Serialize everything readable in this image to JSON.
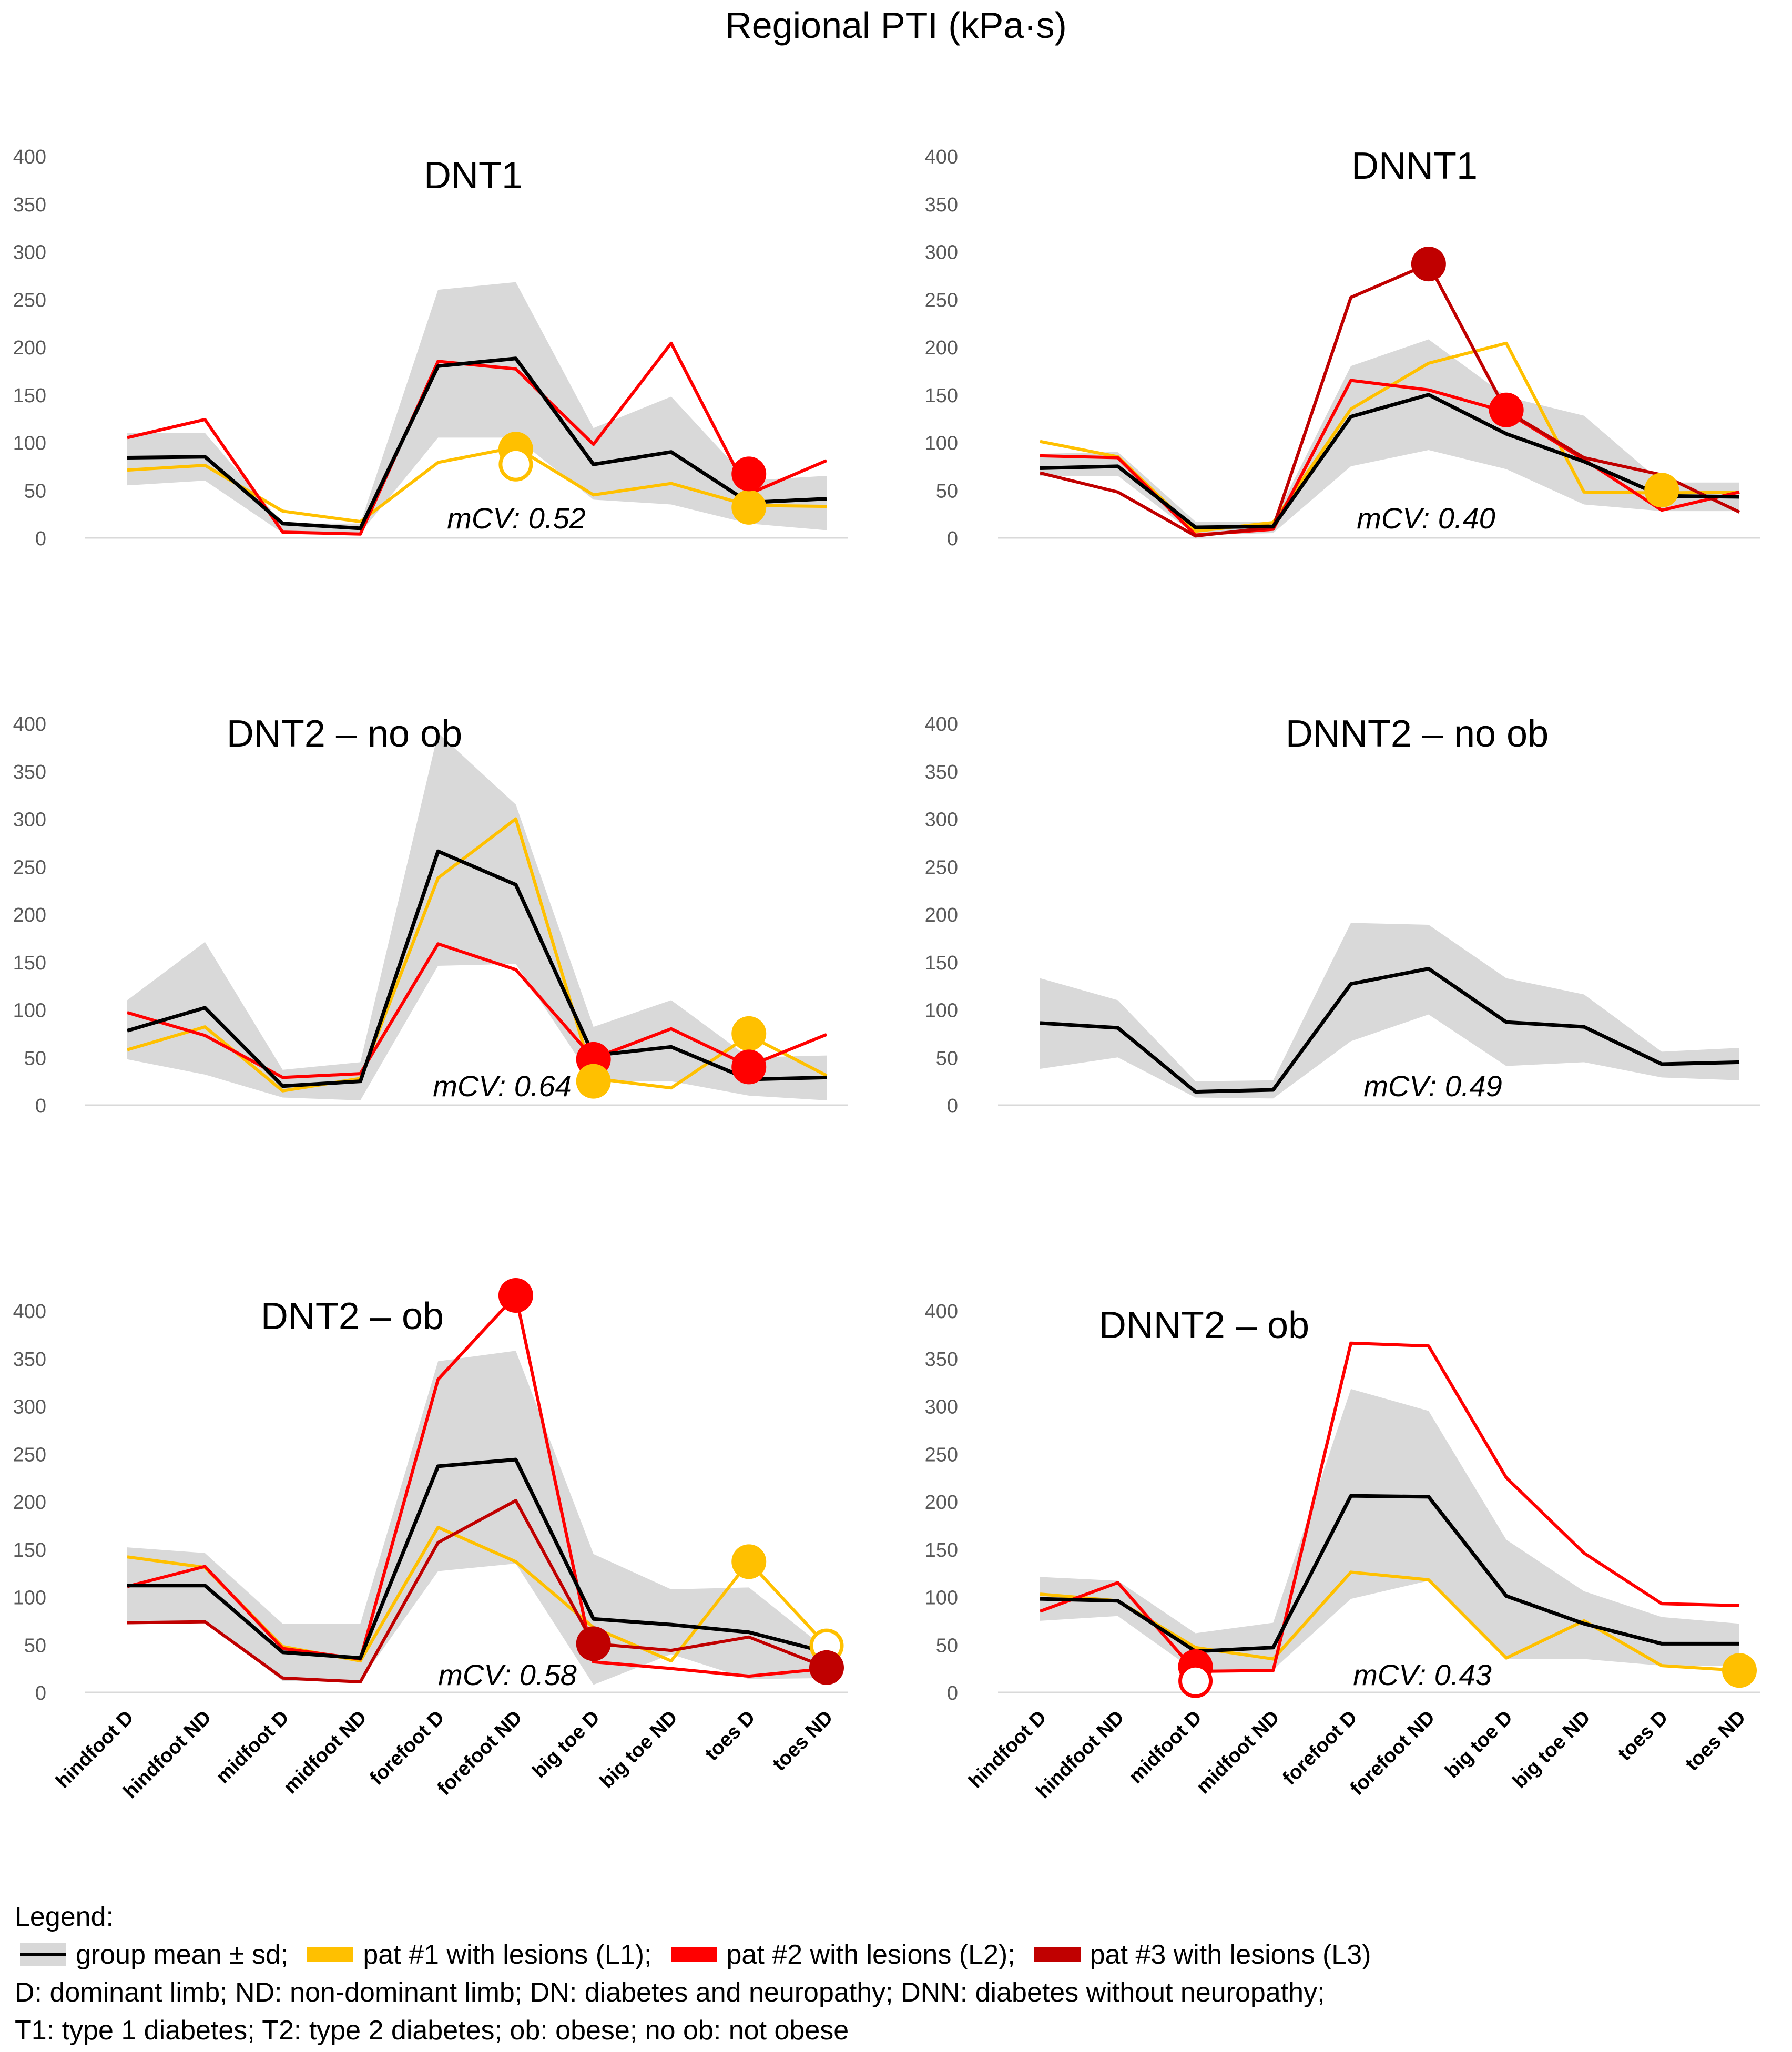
{
  "figure": {
    "title": "Regional PTI (kPa·s)",
    "categories": [
      "hindfoot D",
      "hindfoot ND",
      "midfoot D",
      "midfoot ND",
      "forefoot D",
      "forefoot ND",
      "big toe D",
      "big toe ND",
      "toes D",
      "toes ND"
    ],
    "colors": {
      "mean": "#000000",
      "band": "#d9d9d9",
      "L1": "#ffc000",
      "L2": "#ff0000",
      "L3": "#c00000"
    }
  },
  "chart_data": [
    {
      "type": "line",
      "title": "DNT1",
      "mcv": "mCV: 0.52",
      "ylim": [
        0,
        400
      ],
      "yticks": [
        "0",
        "50",
        "100",
        "150",
        "200",
        "250",
        "300",
        "350",
        "400"
      ],
      "show_xlabels": false,
      "band": {
        "low": [
          55,
          60,
          5,
          5,
          105,
          105,
          40,
          35,
          15,
          8
        ],
        "high": [
          110,
          110,
          15,
          15,
          260,
          268,
          115,
          148,
          60,
          65
        ]
      },
      "series": [
        {
          "name": "group mean",
          "color": "#000000",
          "values": [
            84,
            85,
            15,
            10,
            180,
            188,
            77,
            90,
            37,
            41
          ]
        },
        {
          "name": "pat #1 with lesions (L1)",
          "color": "#ffc000",
          "values": [
            71,
            76,
            28,
            17,
            79,
            95,
            45,
            57,
            34,
            33
          ]
        },
        {
          "name": "pat #2 with lesions (L2)",
          "color": "#ff0000",
          "values": [
            105,
            124,
            6,
            4,
            185,
            177,
            98,
            204,
            46,
            81
          ]
        }
      ],
      "markers": [
        {
          "series": "L1",
          "index": 5,
          "value": 93,
          "filled": true
        },
        {
          "series": "L1",
          "index": 5,
          "value": 77,
          "filled": false
        },
        {
          "series": "L1",
          "index": 8,
          "value": 32,
          "filled": true
        },
        {
          "series": "L2",
          "index": 8,
          "value": 67,
          "filled": true
        }
      ]
    },
    {
      "type": "line",
      "title": "DNNT1",
      "mcv": "mCV: 0.40",
      "ylim": [
        0,
        400
      ],
      "yticks": [
        "0",
        "50",
        "100",
        "150",
        "200",
        "250",
        "300",
        "350",
        "400"
      ],
      "show_xlabels": false,
      "band": {
        "low": [
          65,
          65,
          3,
          5,
          75,
          92,
          72,
          35,
          28,
          28
        ],
        "high": [
          88,
          90,
          17,
          17,
          180,
          208,
          148,
          128,
          58,
          58
        ]
      },
      "series": [
        {
          "name": "group mean",
          "color": "#000000",
          "values": [
            73,
            75,
            11,
            12,
            127,
            150,
            109,
            80,
            44,
            43
          ]
        },
        {
          "name": "pat #1 with lesions (L1)",
          "color": "#ffc000",
          "values": [
            101,
            85,
            7,
            16,
            135,
            183,
            204,
            48,
            47,
            48
          ]
        },
        {
          "name": "pat #2 with lesions (L2)",
          "color": "#ff0000",
          "values": [
            86,
            84,
            3,
            9,
            165,
            155,
            132,
            82,
            29,
            48
          ]
        },
        {
          "name": "pat #3 with lesions (L3)",
          "color": "#c00000",
          "values": [
            68,
            48,
            2,
            11,
            252,
            287,
            133,
            84,
            66,
            27
          ]
        }
      ],
      "markers": [
        {
          "series": "L3",
          "index": 5,
          "value": 287,
          "filled": true
        },
        {
          "series": "L2",
          "index": 6,
          "value": 134,
          "filled": true
        },
        {
          "series": "L1",
          "index": 8,
          "value": 50,
          "filled": true
        }
      ]
    },
    {
      "type": "line",
      "title": "DNT2 – no ob",
      "mcv": "mCV: 0.64",
      "ylim": [
        0,
        400
      ],
      "yticks": [
        "0",
        "50",
        "100",
        "150",
        "200",
        "250",
        "300",
        "350",
        "400"
      ],
      "show_xlabels": false,
      "band": {
        "low": [
          48,
          32,
          8,
          5,
          146,
          148,
          25,
          25,
          10,
          5
        ],
        "high": [
          110,
          171,
          37,
          45,
          390,
          315,
          82,
          110,
          50,
          52
        ]
      },
      "series": [
        {
          "name": "group mean",
          "color": "#000000",
          "values": [
            78,
            102,
            20,
            25,
            266,
            231,
            52,
            61,
            27,
            29
          ]
        },
        {
          "name": "pat #1 with lesions (L1)",
          "color": "#ffc000",
          "values": [
            58,
            82,
            15,
            28,
            238,
            300,
            28,
            18,
            73,
            31
          ]
        },
        {
          "name": "pat #2 with lesions (L2)",
          "color": "#ff0000",
          "values": [
            97,
            73,
            29,
            33,
            169,
            142,
            49,
            80,
            41,
            74
          ]
        }
      ],
      "markers": [
        {
          "series": "L2",
          "index": 6,
          "value": 48,
          "filled": true
        },
        {
          "series": "L1",
          "index": 6,
          "value": 25,
          "filled": true
        },
        {
          "series": "L1",
          "index": 8,
          "value": 75,
          "filled": true
        },
        {
          "series": "L2",
          "index": 8,
          "value": 40,
          "filled": true
        }
      ]
    },
    {
      "type": "line",
      "title": "DNNT2 – no ob",
      "mcv": "mCV: 0.49",
      "ylim": [
        0,
        400
      ],
      "yticks": [
        "0",
        "50",
        "100",
        "150",
        "200",
        "250",
        "300",
        "350",
        "400"
      ],
      "show_xlabels": false,
      "band": {
        "low": [
          38,
          50,
          8,
          7,
          67,
          95,
          41,
          45,
          29,
          26
        ],
        "high": [
          133,
          110,
          25,
          26,
          191,
          189,
          133,
          116,
          56,
          60
        ]
      },
      "series": [
        {
          "name": "group mean",
          "color": "#000000",
          "values": [
            86,
            81,
            14,
            16,
            127,
            143,
            87,
            82,
            43,
            45
          ]
        }
      ],
      "markers": []
    },
    {
      "type": "line",
      "title": "DNT2 – ob",
      "mcv": "mCV: 0.58",
      "ylim": [
        0,
        400
      ],
      "yticks": [
        "0",
        "50",
        "100",
        "150",
        "200",
        "250",
        "300",
        "350",
        "400"
      ],
      "show_xlabels": true,
      "band": {
        "low": [
          75,
          75,
          12,
          12,
          127,
          135,
          8,
          40,
          14,
          15
        ],
        "high": [
          152,
          146,
          72,
          72,
          347,
          358,
          145,
          108,
          110,
          45
        ]
      },
      "series": [
        {
          "name": "group mean",
          "color": "#000000",
          "values": [
            112,
            112,
            42,
            36,
            237,
            244,
            77,
            71,
            63,
            42
          ]
        },
        {
          "name": "pat #1 with lesions (L1)",
          "color": "#ffc000",
          "values": [
            142,
            131,
            48,
            33,
            173,
            137,
            68,
            33,
            137,
            49
          ]
        },
        {
          "name": "pat #2 with lesions (L2)",
          "color": "#ff0000",
          "values": [
            111,
            132,
            46,
            35,
            328,
            416,
            32,
            25,
            17,
            25
          ]
        },
        {
          "name": "pat #3 with lesions (L3)",
          "color": "#c00000",
          "values": [
            73,
            74,
            15,
            11,
            157,
            201,
            51,
            44,
            58,
            26
          ]
        }
      ],
      "markers": [
        {
          "series": "L2",
          "index": 5,
          "value": 416,
          "filled": true
        },
        {
          "series": "L3",
          "index": 6,
          "value": 51,
          "filled": true
        },
        {
          "series": "L1",
          "index": 8,
          "value": 137,
          "filled": true
        },
        {
          "series": "L1",
          "index": 9,
          "value": 49,
          "filled": false
        },
        {
          "series": "L3",
          "index": 9,
          "value": 26,
          "filled": true
        }
      ]
    },
    {
      "type": "line",
      "title": "DNNT2 – ob",
      "mcv": "mCV: 0.43",
      "ylim": [
        0,
        400
      ],
      "yticks": [
        "0",
        "50",
        "100",
        "150",
        "200",
        "250",
        "300",
        "350",
        "400"
      ],
      "show_xlabels": true,
      "band": {
        "low": [
          75,
          80,
          22,
          24,
          98,
          117,
          35,
          35,
          28,
          28
        ],
        "high": [
          121,
          117,
          62,
          73,
          318,
          295,
          160,
          106,
          79,
          72
        ]
      },
      "series": [
        {
          "name": "group mean",
          "color": "#000000",
          "values": [
            98,
            96,
            43,
            47,
            206,
            205,
            101,
            72,
            51,
            51
          ]
        },
        {
          "name": "pat #1 with lesions (L1)",
          "color": "#ffc000",
          "values": [
            103,
            96,
            47,
            35,
            126,
            118,
            36,
            75,
            28,
            23
          ]
        },
        {
          "name": "pat #2 with lesions (L2)",
          "color": "#ff0000",
          "values": [
            85,
            115,
            22,
            23,
            366,
            363,
            225,
            146,
            93,
            91
          ]
        }
      ],
      "markers": [
        {
          "series": "L2",
          "index": 2,
          "value": 27,
          "filled": true
        },
        {
          "series": "L2",
          "index": 2,
          "value": 12,
          "filled": false
        },
        {
          "series": "L1",
          "index": 9,
          "value": 23,
          "filled": true
        }
      ]
    }
  ],
  "legend": {
    "heading": "Legend:",
    "items": [
      {
        "label": "group mean ± sd;",
        "color": "#000000"
      },
      {
        "label": "pat #1 with lesions (L1);",
        "color": "#ffc000"
      },
      {
        "label": "pat #2 with lesions (L2);",
        "color": "#ff0000"
      },
      {
        "label": "pat #3 with lesions (L3)",
        "color": "#c00000"
      }
    ],
    "notes": [
      "D: dominant limb; ND: non-dominant limb; DN: diabetes and neuropathy; DNN: diabetes without neuropathy;",
      "T1: type 1 diabetes; T2: type 2 diabetes; ob: obese; no ob: not obese"
    ]
  }
}
